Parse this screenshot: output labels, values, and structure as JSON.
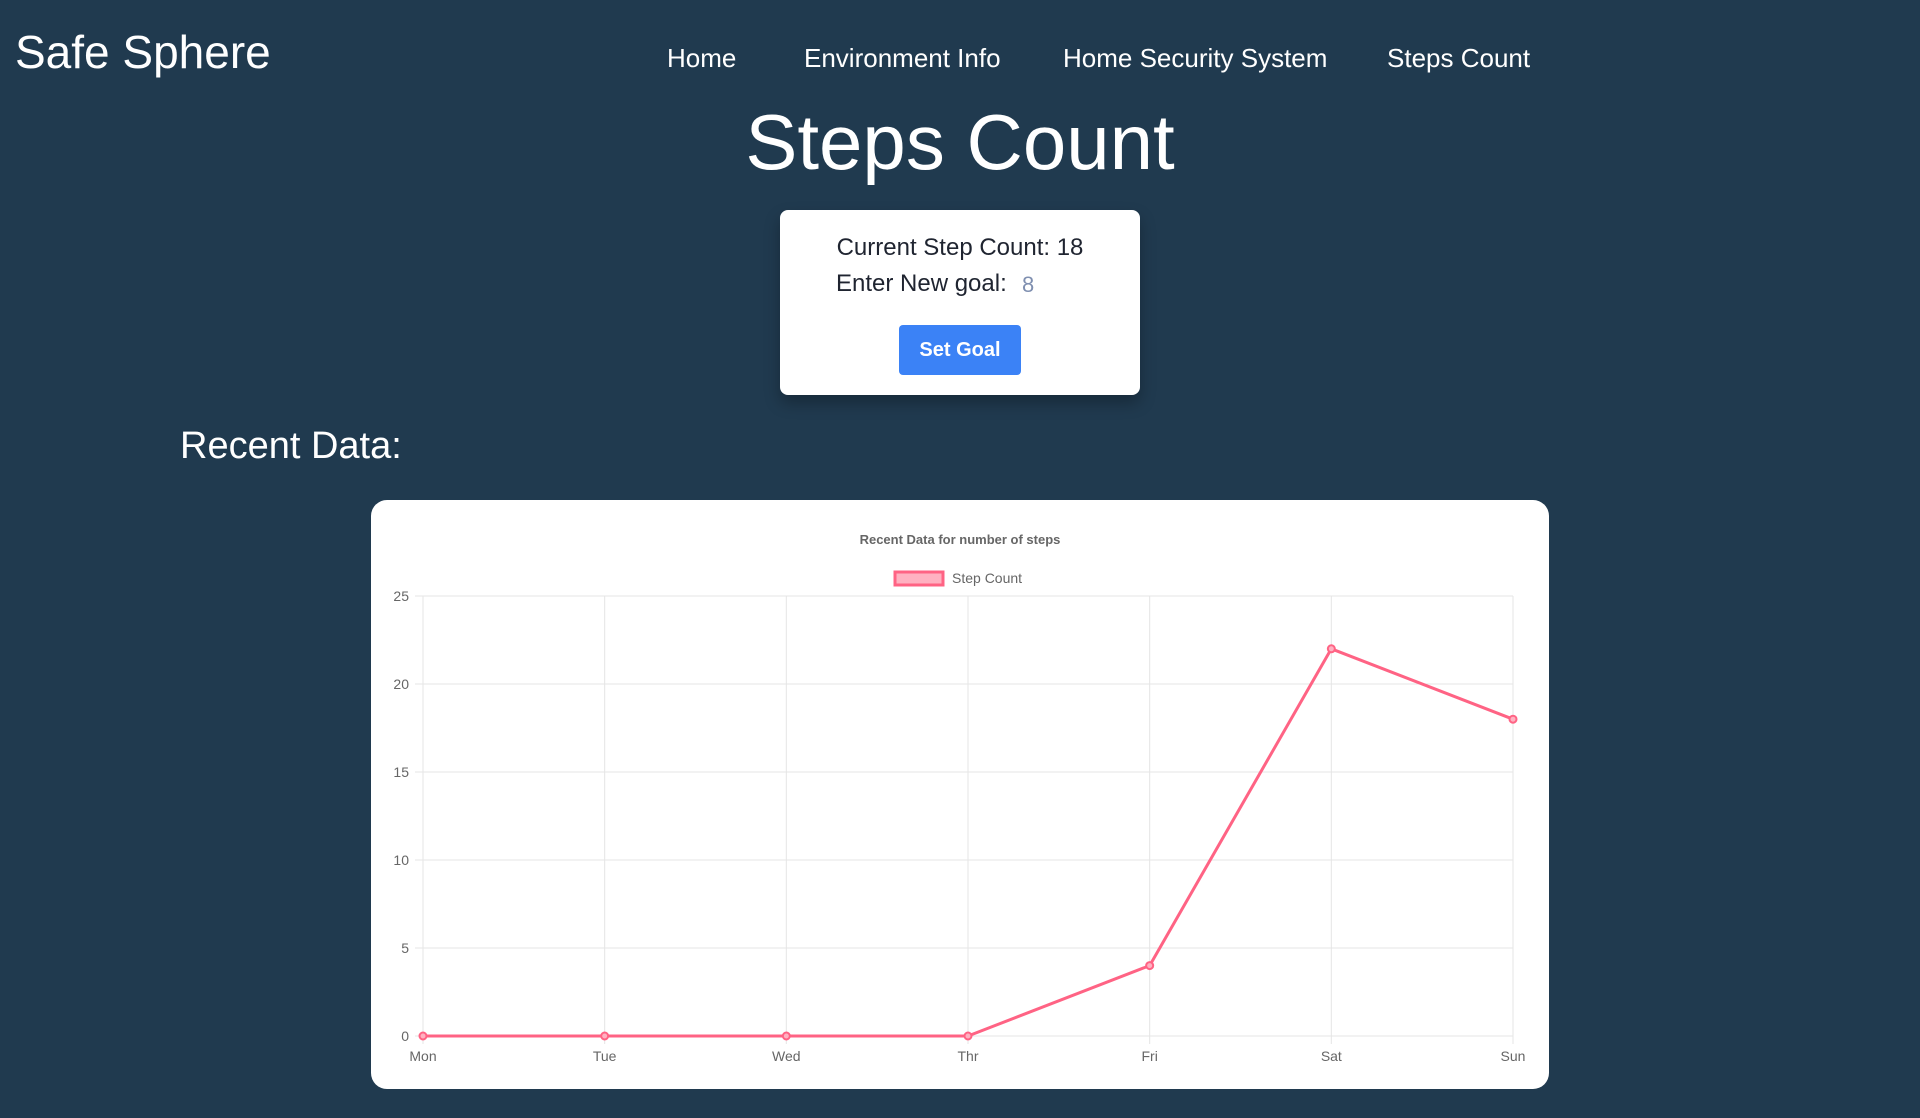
{
  "header": {
    "brand": "Safe Sphere",
    "nav": [
      {
        "label": "Home"
      },
      {
        "label": "Environment Info"
      },
      {
        "label": "Home Security System"
      },
      {
        "label": "Steps Count"
      }
    ]
  },
  "page_title": "Steps Count",
  "goal_card": {
    "step_count_label": "Current Step Count: 18",
    "goal_label": "Enter New goal:",
    "goal_input_placeholder": "8",
    "set_goal_button": "Set Goal"
  },
  "recent_section": {
    "title": "Recent Data:"
  },
  "colors": {
    "background": "#203a4f",
    "button": "#3b82f6",
    "series_line": "#ff6384",
    "series_fill": "#ffb1c1"
  },
  "chart_data": {
    "type": "line",
    "title": "Recent Data for number of steps",
    "categories": [
      "Mon",
      "Tue",
      "Wed",
      "Thr",
      "Fri",
      "Sat",
      "Sun"
    ],
    "series": [
      {
        "name": "Step Count",
        "values": [
          0,
          0,
          0,
          0,
          4,
          22,
          18
        ]
      }
    ],
    "xlabel": "",
    "ylabel": "",
    "ylim": [
      0,
      25
    ],
    "yticks": [
      0,
      5,
      10,
      15,
      20,
      25
    ],
    "grid": true,
    "legend": "top-center"
  }
}
